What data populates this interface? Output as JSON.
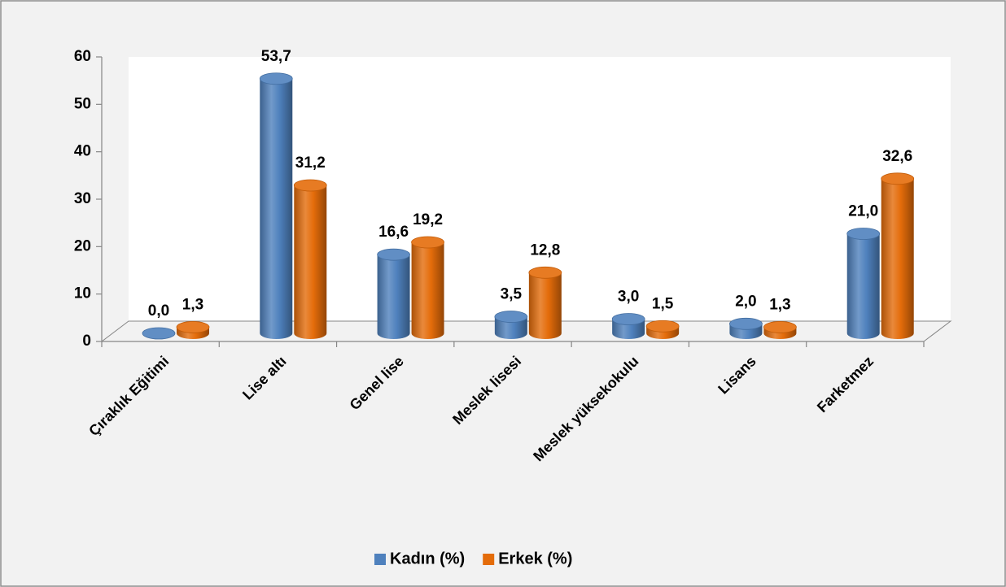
{
  "chart_data": {
    "type": "bar3d",
    "categories": [
      "Çıraklık Eğitimi",
      "Lise altı",
      "Genel lise",
      "Meslek lisesi",
      "Meslek yüksekokulu",
      "Lisans",
      "Farketmez"
    ],
    "series": [
      {
        "name": "Kadın (%)",
        "color": "#4f81bd",
        "values": [
          0.0,
          53.7,
          16.6,
          3.5,
          3.0,
          2.0,
          21.0
        ],
        "value_labels": [
          "0,0",
          "53,7",
          "16,6",
          "3,5",
          "3,0",
          "2,0",
          "21,0"
        ]
      },
      {
        "name": "Erkek (%)",
        "color": "#e46c0a",
        "values": [
          1.3,
          31.2,
          19.2,
          12.8,
          1.5,
          1.3,
          32.6
        ],
        "value_labels": [
          "1,3",
          "31,2",
          "19,2",
          "12,8",
          "1,5",
          "1,3",
          "32,6"
        ]
      }
    ],
    "ylim": [
      0,
      60
    ],
    "yticks": [
      0,
      10,
      20,
      30,
      40,
      50,
      60
    ],
    "legend": "bottom"
  }
}
